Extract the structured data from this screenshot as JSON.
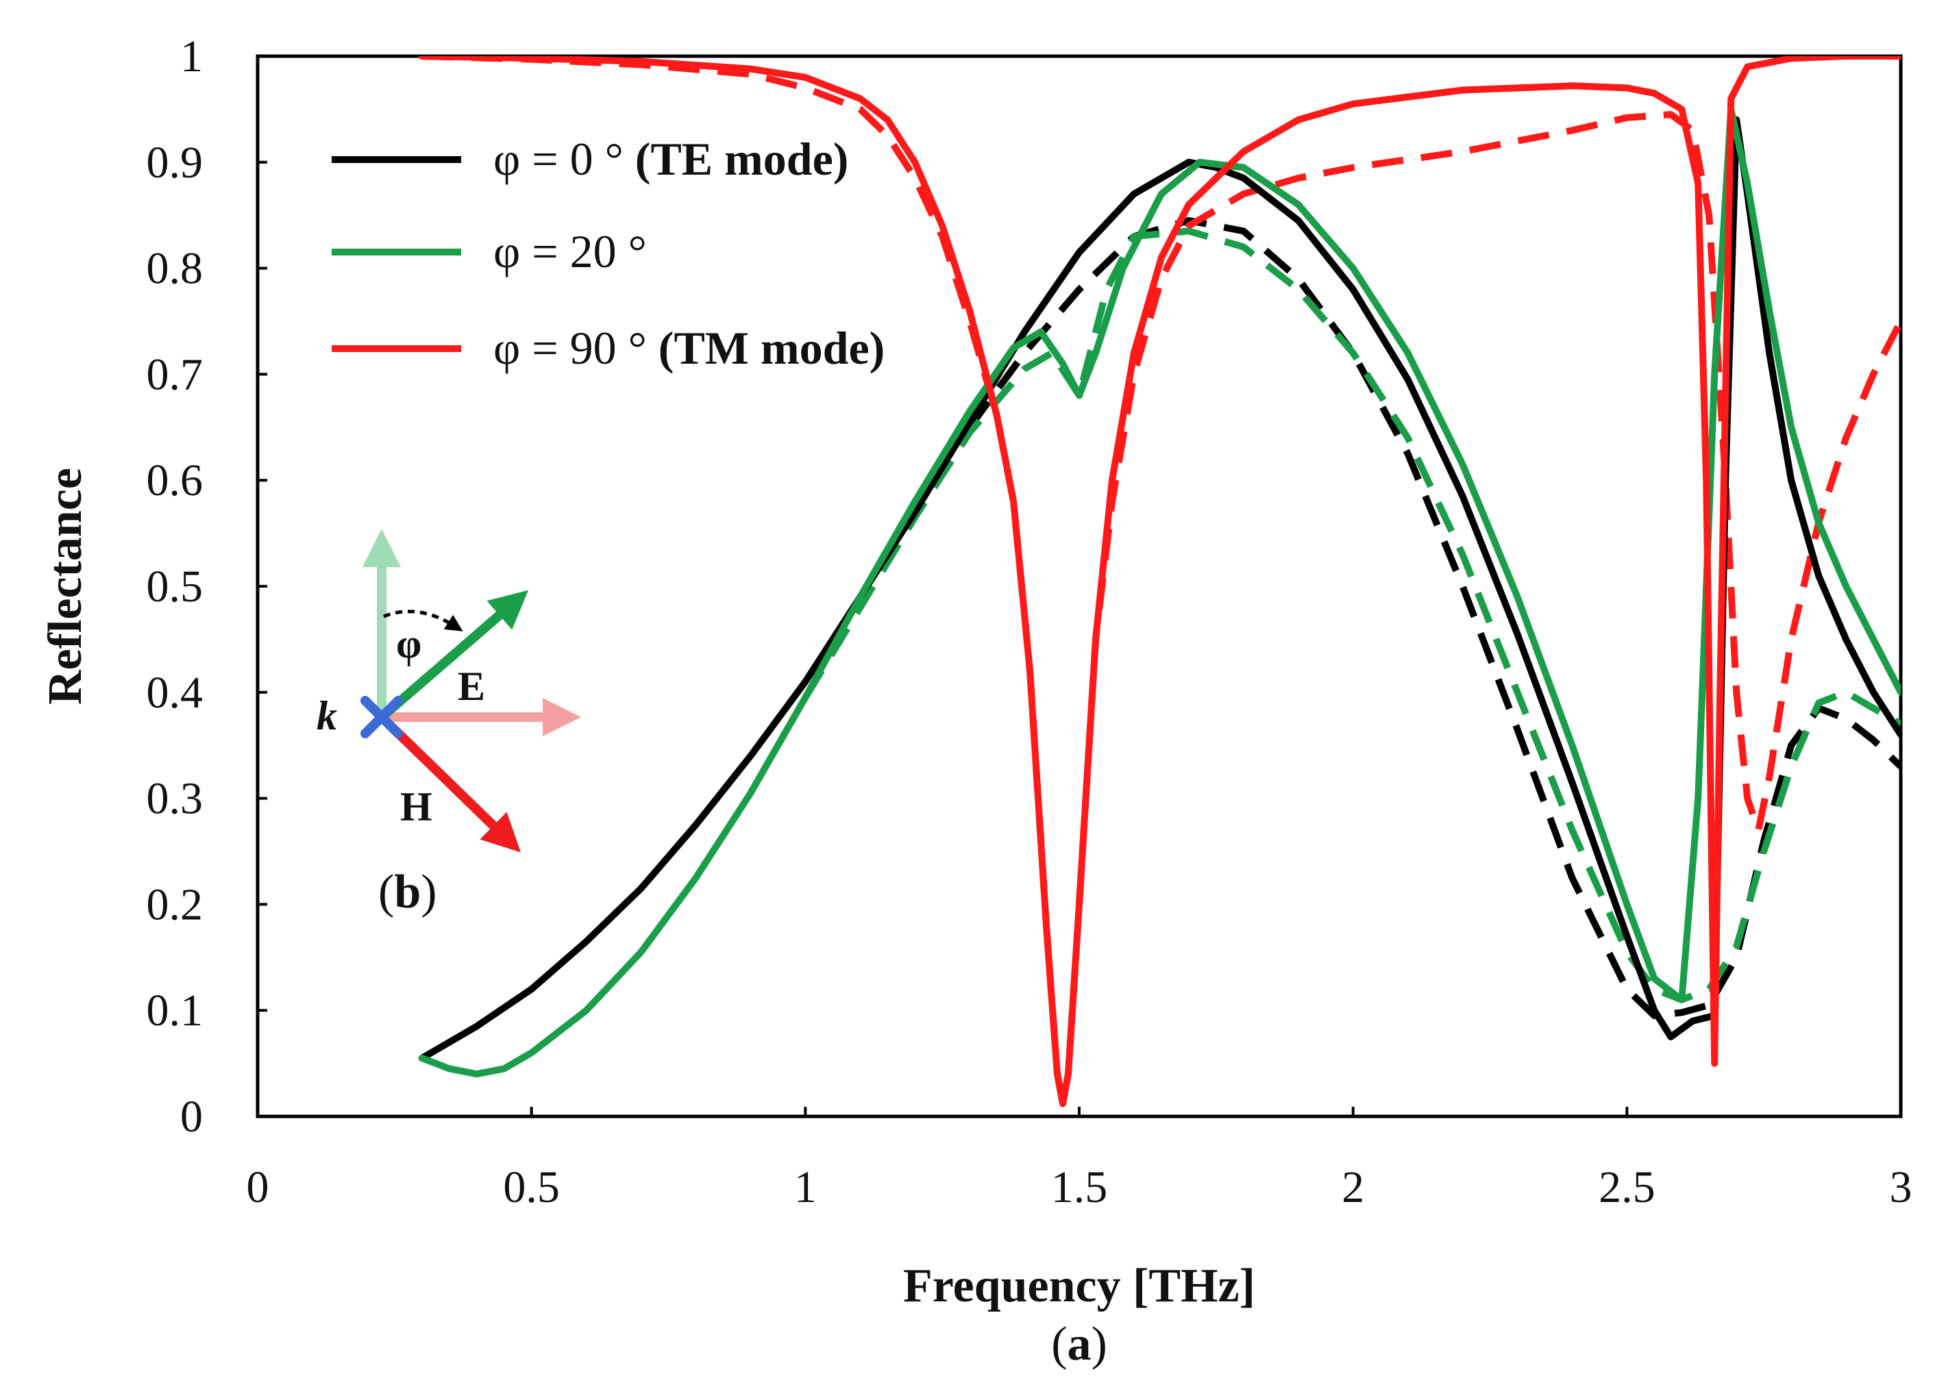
{
  "chart_data": {
    "type": "line",
    "title": "",
    "xlabel": "Frequency [THz]",
    "ylabel": "Reflectance",
    "panel_label": {
      "open": "(",
      "letter": "a",
      "close": ")"
    },
    "xlim": [
      0,
      3
    ],
    "ylim": [
      0,
      1
    ],
    "xticks": [
      0,
      0.5,
      1,
      1.5,
      2,
      2.5,
      3
    ],
    "xtick_labels": [
      "0",
      "0.5",
      "1",
      "1.5",
      "2",
      "2.5",
      "3"
    ],
    "yticks": [
      0,
      0.1,
      0.2,
      0.3,
      0.4,
      0.5,
      0.6,
      0.7,
      0.8,
      0.9,
      1
    ],
    "ytick_labels": [
      "0",
      "0.1",
      "0.2",
      "0.3",
      "0.4",
      "0.5",
      "0.6",
      "0.7",
      "0.8",
      "0.9",
      "1"
    ],
    "grid": false,
    "legend_position": "top-left",
    "legend": [
      {
        "label_plain": "φ = 0 ° ",
        "label_bold": "(TE mode)",
        "color": "#000000"
      },
      {
        "label_plain": "φ = 20 °",
        "label_bold": "",
        "color": "#1a9e4a"
      },
      {
        "label_plain": "φ = 90 ° ",
        "label_bold": "(TM mode)",
        "color": "#ff1a1a"
      }
    ],
    "series": [
      {
        "name": "φ = 0 ° solid",
        "color": "#000000",
        "dash": "solid",
        "points": [
          [
            0.3,
            0.055
          ],
          [
            0.4,
            0.085
          ],
          [
            0.5,
            0.12
          ],
          [
            0.6,
            0.165
          ],
          [
            0.7,
            0.215
          ],
          [
            0.8,
            0.275
          ],
          [
            0.9,
            0.34
          ],
          [
            1.0,
            0.41
          ],
          [
            1.1,
            0.49
          ],
          [
            1.2,
            0.57
          ],
          [
            1.3,
            0.655
          ],
          [
            1.4,
            0.74
          ],
          [
            1.5,
            0.815
          ],
          [
            1.6,
            0.87
          ],
          [
            1.7,
            0.9
          ],
          [
            1.75,
            0.895
          ],
          [
            1.8,
            0.885
          ],
          [
            1.9,
            0.845
          ],
          [
            2.0,
            0.78
          ],
          [
            2.1,
            0.695
          ],
          [
            2.2,
            0.585
          ],
          [
            2.3,
            0.455
          ],
          [
            2.4,
            0.315
          ],
          [
            2.5,
            0.17
          ],
          [
            2.55,
            0.1
          ],
          [
            2.58,
            0.075
          ],
          [
            2.62,
            0.09
          ],
          [
            2.66,
            0.095
          ],
          [
            2.68,
            0.6
          ],
          [
            2.7,
            0.94
          ],
          [
            2.72,
            0.87
          ],
          [
            2.76,
            0.72
          ],
          [
            2.8,
            0.6
          ],
          [
            2.85,
            0.51
          ],
          [
            2.9,
            0.45
          ],
          [
            2.95,
            0.4
          ],
          [
            3.0,
            0.36
          ]
        ]
      },
      {
        "name": "φ = 0 ° dashed",
        "color": "#000000",
        "dash": "dashed",
        "points": [
          [
            1.3,
            0.65
          ],
          [
            1.4,
            0.72
          ],
          [
            1.5,
            0.78
          ],
          [
            1.6,
            0.83
          ],
          [
            1.7,
            0.845
          ],
          [
            1.8,
            0.835
          ],
          [
            1.9,
            0.79
          ],
          [
            2.0,
            0.72
          ],
          [
            2.1,
            0.625
          ],
          [
            2.2,
            0.5
          ],
          [
            2.3,
            0.365
          ],
          [
            2.4,
            0.225
          ],
          [
            2.5,
            0.12
          ],
          [
            2.55,
            0.095
          ],
          [
            2.6,
            0.098
          ],
          [
            2.65,
            0.105
          ],
          [
            2.7,
            0.15
          ],
          [
            2.75,
            0.26
          ],
          [
            2.8,
            0.35
          ],
          [
            2.85,
            0.385
          ],
          [
            2.9,
            0.375
          ],
          [
            2.95,
            0.355
          ],
          [
            3.0,
            0.33
          ]
        ]
      },
      {
        "name": "φ = 20 ° solid",
        "color": "#1a9e4a",
        "dash": "solid",
        "points": [
          [
            0.3,
            0.055
          ],
          [
            0.35,
            0.045
          ],
          [
            0.4,
            0.04
          ],
          [
            0.45,
            0.045
          ],
          [
            0.5,
            0.06
          ],
          [
            0.6,
            0.1
          ],
          [
            0.7,
            0.155
          ],
          [
            0.8,
            0.225
          ],
          [
            0.9,
            0.305
          ],
          [
            1.0,
            0.395
          ],
          [
            1.1,
            0.49
          ],
          [
            1.2,
            0.58
          ],
          [
            1.3,
            0.665
          ],
          [
            1.38,
            0.725
          ],
          [
            1.43,
            0.74
          ],
          [
            1.47,
            0.71
          ],
          [
            1.5,
            0.68
          ],
          [
            1.53,
            0.72
          ],
          [
            1.58,
            0.8
          ],
          [
            1.65,
            0.87
          ],
          [
            1.72,
            0.9
          ],
          [
            1.8,
            0.895
          ],
          [
            1.9,
            0.86
          ],
          [
            2.0,
            0.8
          ],
          [
            2.1,
            0.72
          ],
          [
            2.2,
            0.615
          ],
          [
            2.3,
            0.49
          ],
          [
            2.4,
            0.35
          ],
          [
            2.5,
            0.2
          ],
          [
            2.55,
            0.13
          ],
          [
            2.6,
            0.11
          ],
          [
            2.63,
            0.3
          ],
          [
            2.66,
            0.7
          ],
          [
            2.69,
            0.95
          ],
          [
            2.72,
            0.88
          ],
          [
            2.76,
            0.76
          ],
          [
            2.8,
            0.65
          ],
          [
            2.85,
            0.56
          ],
          [
            2.9,
            0.5
          ],
          [
            2.95,
            0.45
          ],
          [
            3.0,
            0.4
          ]
        ]
      },
      {
        "name": "φ = 20 ° dashed",
        "color": "#1a9e4a",
        "dash": "dashed",
        "points": [
          [
            1.0,
            0.395
          ],
          [
            1.1,
            0.48
          ],
          [
            1.2,
            0.565
          ],
          [
            1.3,
            0.645
          ],
          [
            1.4,
            0.705
          ],
          [
            1.45,
            0.72
          ],
          [
            1.5,
            0.68
          ],
          [
            1.55,
            0.78
          ],
          [
            1.6,
            0.83
          ],
          [
            1.7,
            0.835
          ],
          [
            1.8,
            0.82
          ],
          [
            1.9,
            0.78
          ],
          [
            2.0,
            0.72
          ],
          [
            2.1,
            0.64
          ],
          [
            2.2,
            0.53
          ],
          [
            2.3,
            0.4
          ],
          [
            2.4,
            0.27
          ],
          [
            2.5,
            0.155
          ],
          [
            2.55,
            0.12
          ],
          [
            2.6,
            0.11
          ],
          [
            2.65,
            0.12
          ],
          [
            2.7,
            0.16
          ],
          [
            2.75,
            0.25
          ],
          [
            2.8,
            0.33
          ],
          [
            2.85,
            0.39
          ],
          [
            2.9,
            0.4
          ],
          [
            2.95,
            0.385
          ],
          [
            3.0,
            0.37
          ]
        ]
      },
      {
        "name": "φ = 90 ° solid",
        "color": "#ff1a1a",
        "dash": "solid",
        "points": [
          [
            0.3,
            1.0
          ],
          [
            0.5,
            0.998
          ],
          [
            0.7,
            0.995
          ],
          [
            0.9,
            0.988
          ],
          [
            1.0,
            0.98
          ],
          [
            1.1,
            0.96
          ],
          [
            1.15,
            0.94
          ],
          [
            1.2,
            0.9
          ],
          [
            1.25,
            0.84
          ],
          [
            1.3,
            0.76
          ],
          [
            1.35,
            0.66
          ],
          [
            1.38,
            0.58
          ],
          [
            1.41,
            0.42
          ],
          [
            1.44,
            0.18
          ],
          [
            1.46,
            0.04
          ],
          [
            1.47,
            0.012
          ],
          [
            1.48,
            0.04
          ],
          [
            1.5,
            0.2
          ],
          [
            1.53,
            0.45
          ],
          [
            1.56,
            0.6
          ],
          [
            1.6,
            0.72
          ],
          [
            1.65,
            0.81
          ],
          [
            1.7,
            0.86
          ],
          [
            1.8,
            0.91
          ],
          [
            1.9,
            0.94
          ],
          [
            2.0,
            0.955
          ],
          [
            2.2,
            0.968
          ],
          [
            2.4,
            0.972
          ],
          [
            2.5,
            0.97
          ],
          [
            2.55,
            0.965
          ],
          [
            2.6,
            0.95
          ],
          [
            2.63,
            0.88
          ],
          [
            2.645,
            0.6
          ],
          [
            2.66,
            0.05
          ],
          [
            2.67,
            0.4
          ],
          [
            2.69,
            0.96
          ],
          [
            2.72,
            0.99
          ],
          [
            2.8,
            0.998
          ],
          [
            2.9,
            1.0
          ],
          [
            3.0,
            1.0
          ]
        ]
      },
      {
        "name": "φ = 90 ° dashed",
        "color": "#ff1a1a",
        "dash": "dashed",
        "points": [
          [
            0.3,
            1.0
          ],
          [
            0.5,
            0.997
          ],
          [
            0.7,
            0.992
          ],
          [
            0.9,
            0.983
          ],
          [
            1.0,
            0.97
          ],
          [
            1.1,
            0.95
          ],
          [
            1.15,
            0.925
          ],
          [
            1.2,
            0.885
          ],
          [
            1.25,
            0.83
          ],
          [
            1.3,
            0.75
          ],
          [
            1.35,
            0.66
          ],
          [
            1.38,
            0.58
          ],
          [
            1.41,
            0.42
          ],
          [
            1.44,
            0.18
          ],
          [
            1.46,
            0.04
          ],
          [
            1.47,
            0.012
          ],
          [
            1.48,
            0.04
          ],
          [
            1.5,
            0.2
          ],
          [
            1.53,
            0.45
          ],
          [
            1.56,
            0.58
          ],
          [
            1.6,
            0.7
          ],
          [
            1.65,
            0.79
          ],
          [
            1.7,
            0.84
          ],
          [
            1.8,
            0.87
          ],
          [
            1.9,
            0.885
          ],
          [
            2.0,
            0.895
          ],
          [
            2.2,
            0.91
          ],
          [
            2.4,
            0.93
          ],
          [
            2.5,
            0.942
          ],
          [
            2.58,
            0.945
          ],
          [
            2.62,
            0.93
          ],
          [
            2.65,
            0.85
          ],
          [
            2.68,
            0.6
          ],
          [
            2.7,
            0.4
          ],
          [
            2.72,
            0.3
          ],
          [
            2.74,
            0.27
          ],
          [
            2.76,
            0.32
          ],
          [
            2.8,
            0.45
          ],
          [
            2.85,
            0.56
          ],
          [
            2.9,
            0.64
          ],
          [
            2.95,
            0.7
          ],
          [
            3.0,
            0.75
          ]
        ]
      }
    ]
  },
  "inset": {
    "phi": "φ",
    "e": "E",
    "h": "H",
    "k": "k",
    "label": {
      "open": "(",
      "letter": "b",
      "close": ")"
    }
  }
}
